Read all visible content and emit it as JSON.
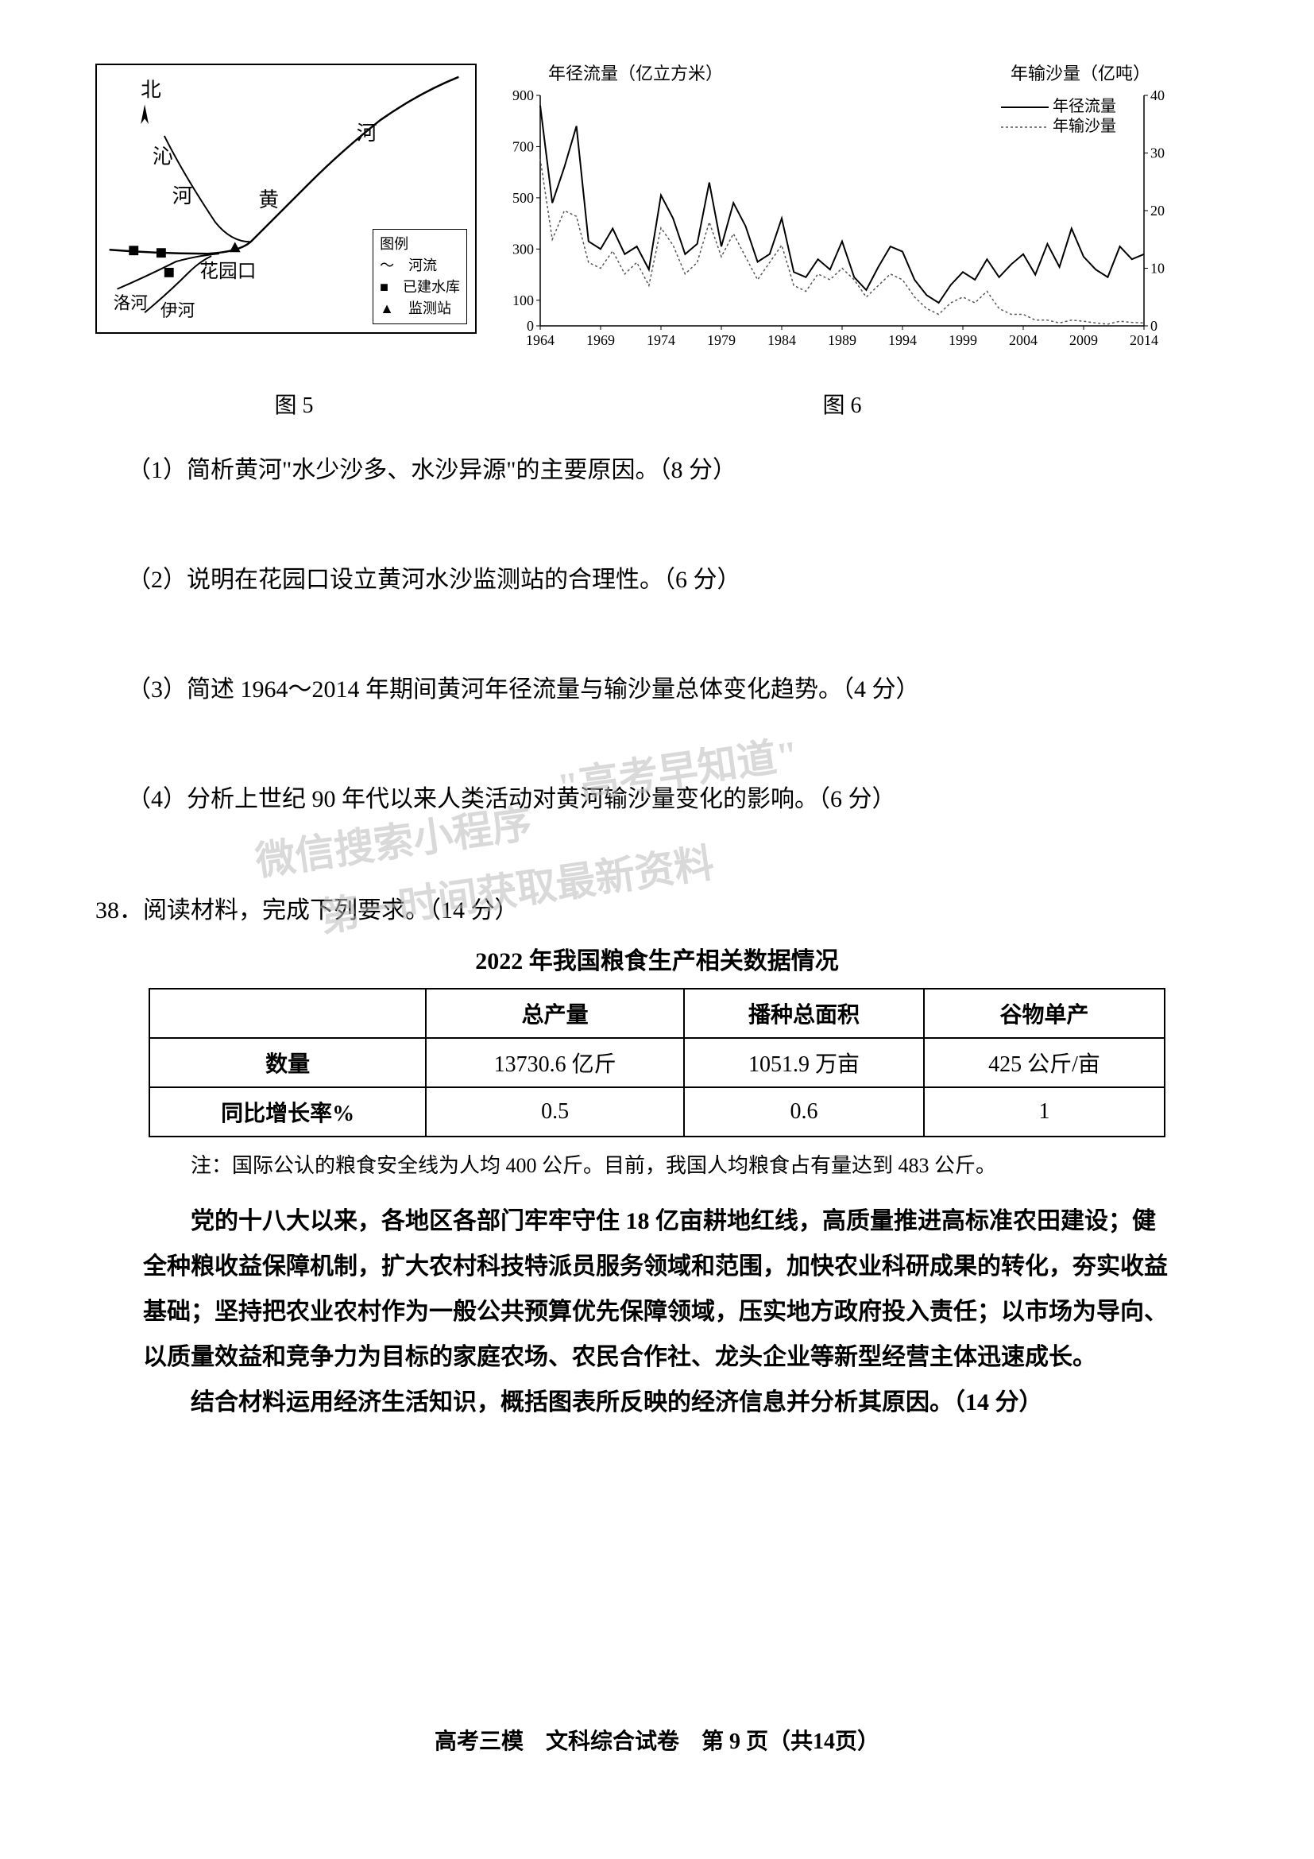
{
  "map": {
    "caption": "图 5",
    "labels": {
      "north": "北",
      "river_qin": "沁",
      "river_qin2": "河",
      "river_huang": "黄",
      "river_he": "河",
      "huayuankou": "花园口",
      "river_luo": "洛河",
      "river_yi": "伊河"
    },
    "legend": {
      "title": "图例",
      "river": "河流",
      "reservoir": "已建水库",
      "station": "监测站"
    },
    "border_color": "#000000",
    "river_color": "#000000"
  },
  "chart": {
    "caption": "图 6",
    "title_left": "年径流量（亿立方米）",
    "title_right": "年输沙量（亿吨）",
    "series1_label": "年径流量",
    "series2_label": "年输沙量",
    "x_ticks": [
      "1964",
      "1969",
      "1974",
      "1979",
      "1984",
      "1989",
      "1994",
      "1999",
      "2004",
      "2009",
      "2014"
    ],
    "y_left_ticks": [
      0,
      100,
      300,
      500,
      700,
      900
    ],
    "y_right_ticks": [
      0,
      10,
      20,
      30,
      40
    ],
    "ylim_left": [
      0,
      900
    ],
    "ylim_right": [
      0,
      40
    ],
    "line_color": "#000000",
    "dotted_color": "#555555",
    "series1_data": [
      860,
      480,
      620,
      780,
      330,
      300,
      380,
      280,
      310,
      220,
      510,
      420,
      280,
      320,
      560,
      310,
      480,
      390,
      250,
      280,
      420,
      210,
      190,
      260,
      220,
      330,
      190,
      140,
      230,
      310,
      290,
      180,
      120,
      90,
      160,
      210,
      180,
      260,
      190,
      240,
      280,
      200,
      320,
      230,
      380,
      270,
      220,
      190,
      310,
      260,
      280
    ],
    "series2_data": [
      29,
      15,
      20,
      19,
      11,
      10,
      13,
      9,
      11,
      7,
      17,
      14,
      9,
      11,
      18,
      12,
      16,
      12,
      8,
      11,
      14,
      7,
      6,
      9,
      8,
      10,
      8,
      5,
      7,
      9,
      8,
      5,
      3,
      2,
      4,
      5,
      4,
      6,
      3,
      2,
      2,
      1,
      1,
      0.5,
      1,
      0.8,
      0.5,
      0.3,
      0.8,
      0.6,
      0.5
    ]
  },
  "questions": {
    "q1": "（1）简析黄河\"水少沙多、水沙异源\"的主要原因。（8 分）",
    "q2": "（2）说明在花园口设立黄河水沙监测站的合理性。（6 分）",
    "q3": "（3）简述 1964～2014 年期间黄河年径流量与输沙量总体变化趋势。（4 分）",
    "q4": "（4）分析上世纪 90 年代以来人类活动对黄河输沙量变化的影响。（6 分）"
  },
  "watermarks": {
    "w1": "\"高考早知道\"",
    "w2": "微信搜索小程序",
    "w3": "第一时间获取最新资料"
  },
  "q38": {
    "header": "38．阅读材料，完成下列要求。（14 分）",
    "table_title": "2022 年我国粮食生产相关数据情况",
    "table": {
      "columns": [
        "",
        "总产量",
        "播种总面积",
        "谷物单产"
      ],
      "rows": [
        [
          "数量",
          "13730.6 亿斤",
          "1051.9 万亩",
          "425 公斤/亩"
        ],
        [
          "同比增长率%",
          "0.5",
          "0.6",
          "1"
        ]
      ]
    },
    "note": "注：国际公认的粮食安全线为人均 400 公斤。目前，我国人均粮食占有量达到 483 公斤。",
    "para": "党的十八大以来，各地区各部门牢牢守住 18 亿亩耕地红线，高质量推进高标准农田建设；健全种粮收益保障机制，扩大农村科技特派员服务领域和范围，加快农业科研成果的转化，夯实收益基础；坚持把农业农村作为一般公共预算优先保障领域，压实地方政府投入责任；以市场为导向、以质量效益和竞争力为目标的家庭农场、农民合作社、龙头企业等新型经营主体迅速成长。",
    "final": "结合材料运用经济生活知识，概括图表所反映的经济信息并分析其原因。（14 分）"
  },
  "footer": "高考三模　文科综合试卷　第 9 页（共14页）"
}
